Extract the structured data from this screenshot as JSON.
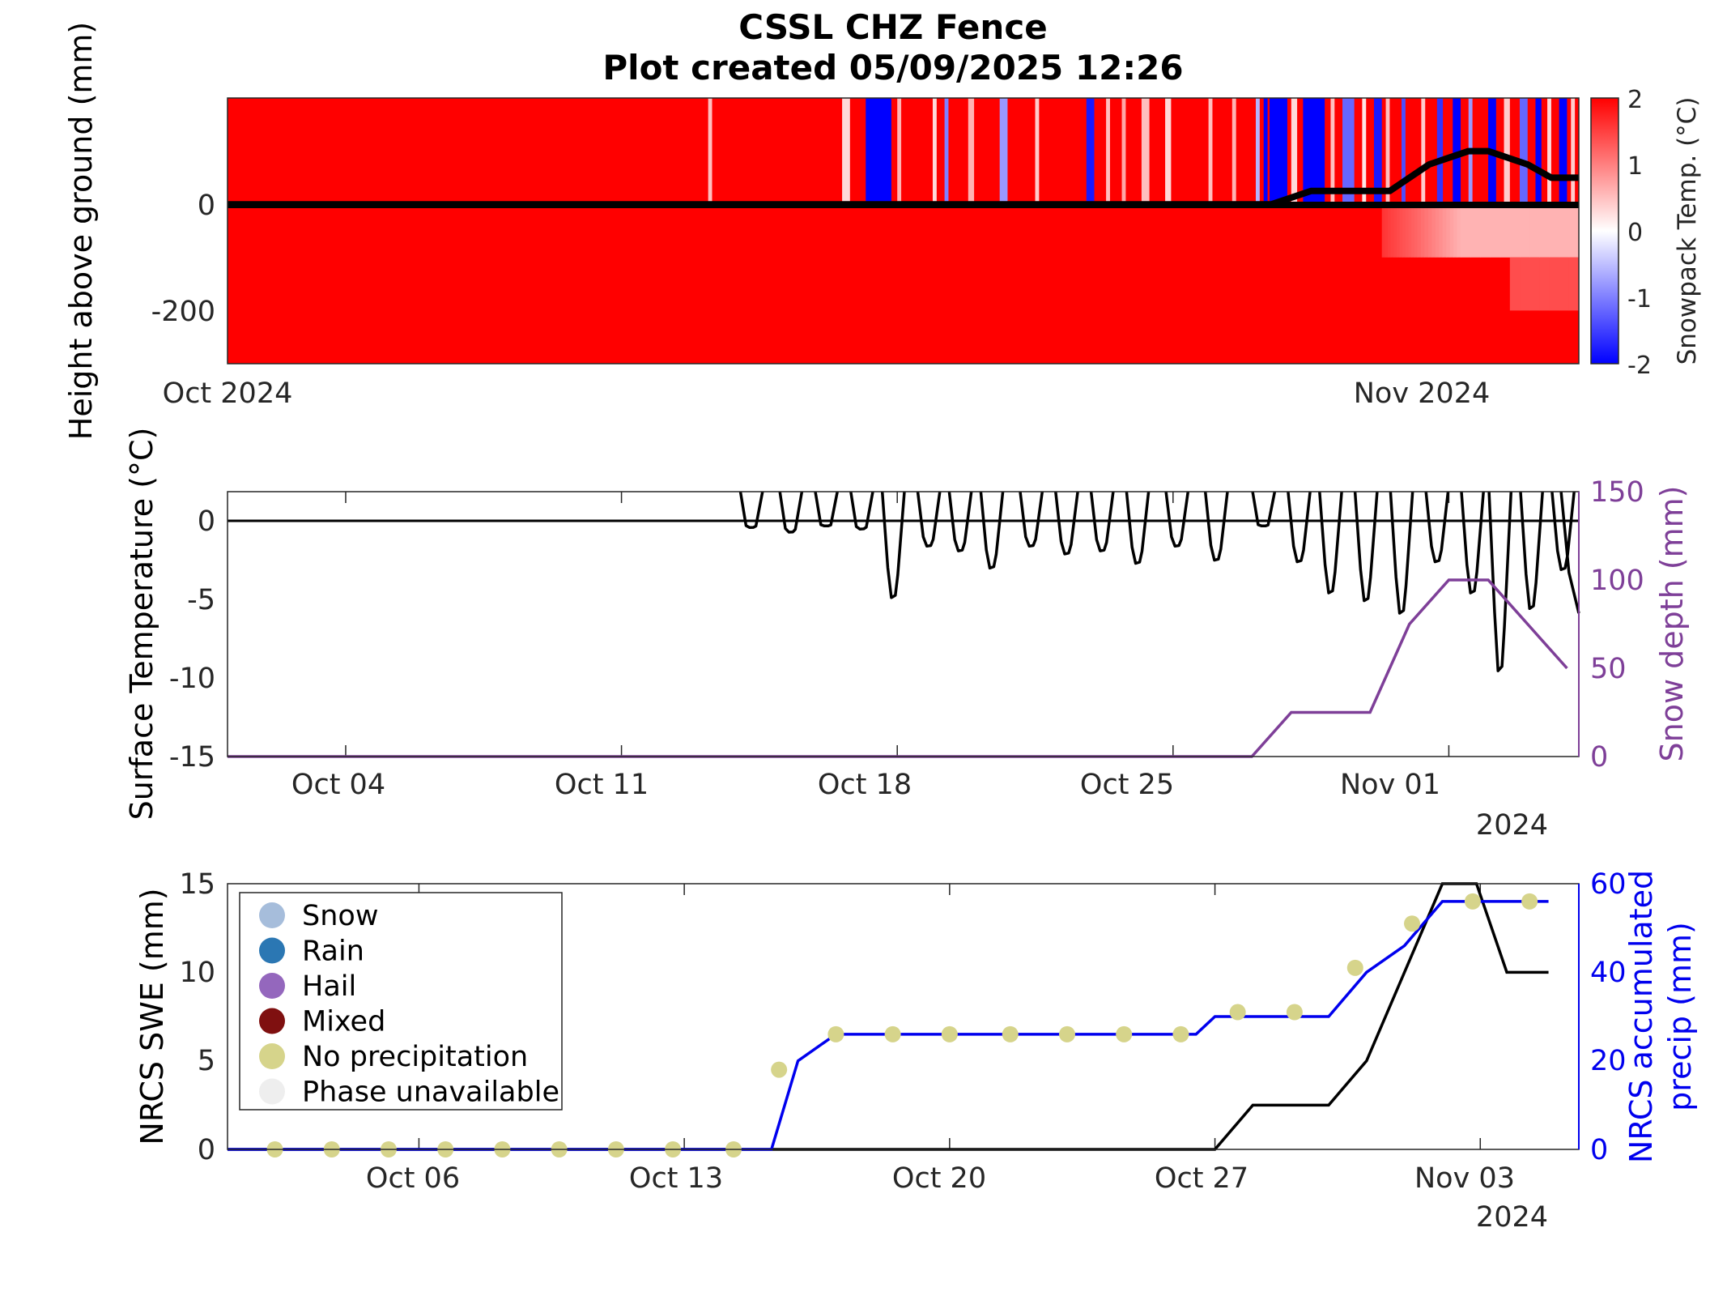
{
  "title": {
    "line1": "CSSL CHZ Fence",
    "line2": "Plot created 05/09/2025 12:26"
  },
  "chart_data": [
    {
      "id": "snowpack",
      "type": "heatmap",
      "ylabel": "Height above ground (mm)",
      "colorbar_label": "Snowpack Temp. (°C)",
      "colorbar_range": [
        -2,
        2
      ],
      "colorbar_ticks": [
        "2",
        "1",
        "0",
        "-1",
        "-2"
      ],
      "colormap": {
        "low": "#0000ff",
        "mid": "#ffffff",
        "high": "#ff0000"
      },
      "xlim_days": [
        1,
        35.3
      ],
      "ylim": [
        -300,
        200
      ],
      "xticks": [
        {
          "day": 1,
          "label": "Oct 2024"
        },
        {
          "day": 32,
          "label": "Nov 2024"
        }
      ],
      "yticks": [
        "0",
        "-200"
      ],
      "stripes": [
        [
          13.2,
          13.3,
          0.5
        ],
        [
          16.6,
          16.8,
          0.3
        ],
        [
          17.2,
          17.85,
          -2
        ],
        [
          18.0,
          18.1,
          0.6
        ],
        [
          18.9,
          19.0,
          0.3
        ],
        [
          19.2,
          19.3,
          -1
        ],
        [
          19.8,
          19.95,
          0.6
        ],
        [
          20.6,
          20.8,
          -0.8
        ],
        [
          21.5,
          21.6,
          0.4
        ],
        [
          22.8,
          23.0,
          -1.8
        ],
        [
          23.3,
          23.4,
          0.5
        ],
        [
          23.7,
          23.8,
          0.7
        ],
        [
          24.2,
          24.4,
          0.5
        ],
        [
          24.8,
          24.95,
          0.3
        ],
        [
          25.9,
          26.0,
          0.5
        ],
        [
          26.5,
          26.6,
          0.6
        ],
        [
          27.1,
          27.2,
          -0.6
        ],
        [
          27.3,
          27.4,
          -2
        ],
        [
          27.45,
          27.9,
          -2
        ],
        [
          28.0,
          28.15,
          0.3
        ],
        [
          28.3,
          28.85,
          -2
        ],
        [
          29.0,
          29.1,
          0.5
        ],
        [
          29.3,
          29.6,
          -1.2
        ],
        [
          29.8,
          29.9,
          0.2
        ],
        [
          30.1,
          30.3,
          -1.8
        ],
        [
          30.4,
          30.5,
          0.5
        ],
        [
          30.8,
          30.9,
          -1.4
        ],
        [
          31.3,
          31.4,
          0.4
        ],
        [
          31.7,
          31.85,
          -1.6
        ],
        [
          32.1,
          32.3,
          -2
        ],
        [
          32.5,
          32.6,
          -0.8
        ],
        [
          33.0,
          33.2,
          -2
        ],
        [
          33.4,
          33.55,
          0.4
        ],
        [
          33.8,
          34.0,
          -1.2
        ],
        [
          34.2,
          34.35,
          -2
        ],
        [
          34.5,
          34.6,
          0.3
        ],
        [
          34.8,
          35.0,
          -2
        ],
        [
          35.1,
          35.2,
          0.4
        ]
      ],
      "subsurface_warm_fade": [
        [
          30.3,
          1.6
        ],
        [
          31.2,
          1.2
        ],
        [
          32.3,
          0.6
        ],
        [
          35.3,
          0.6
        ]
      ],
      "snow_depth_line": {
        "x": [
          1,
          27.5,
          28.5,
          30.5,
          31.5,
          32.5,
          33.0,
          34.0,
          34.6,
          35.3
        ],
        "y": [
          0,
          0,
          25,
          25,
          75,
          100,
          100,
          75,
          50,
          50
        ]
      }
    },
    {
      "id": "surface",
      "type": "line",
      "ylabel": "Surface Temperature (°C)",
      "y2label": "Snow depth (mm)",
      "ylim": [
        -15,
        2
      ],
      "y2lim": [
        0,
        150
      ],
      "xlim_days": [
        1,
        35.3
      ],
      "xticks": [
        {
          "day": 4,
          "label": "Oct 04"
        },
        {
          "day": 11,
          "label": "Oct 11"
        },
        {
          "day": 18,
          "label": "Oct 18"
        },
        {
          "day": 25,
          "label": "Oct 25"
        },
        {
          "day": 32,
          "label": "Nov 01"
        }
      ],
      "year_label": "2024",
      "yticks": [
        0,
        -5,
        -10,
        -15
      ],
      "y2ticks": [
        150,
        100,
        50,
        0
      ],
      "zero_line": 0,
      "min_dips": [
        [
          14.3,
          -0.3
        ],
        [
          15.3,
          -0.6
        ],
        [
          16.2,
          -0.2
        ],
        [
          17.1,
          -0.4
        ],
        [
          17.9,
          -4.8
        ],
        [
          18.8,
          -1.5
        ],
        [
          19.6,
          -1.8
        ],
        [
          20.4,
          -2.9
        ],
        [
          21.4,
          -1.5
        ],
        [
          22.3,
          -2.0
        ],
        [
          23.2,
          -1.8
        ],
        [
          24.1,
          -2.6
        ],
        [
          25.1,
          -1.5
        ],
        [
          26.1,
          -2.4
        ],
        [
          27.3,
          -0.2
        ],
        [
          28.2,
          -2.5
        ],
        [
          29.0,
          -4.5
        ],
        [
          29.9,
          -5.0
        ],
        [
          30.8,
          -5.8
        ],
        [
          31.7,
          -2.5
        ],
        [
          32.6,
          -4.5
        ],
        [
          33.3,
          -9.5
        ],
        [
          34.1,
          -5.5
        ],
        [
          34.9,
          -3.0
        ]
      ],
      "snow_depth": {
        "x": [
          1,
          27.0,
          28.0,
          30.0,
          31.0,
          32.0,
          33.0,
          34.0,
          35.0
        ],
        "y": [
          0,
          0,
          25,
          25,
          75,
          100,
          100,
          75,
          50
        ]
      }
    },
    {
      "id": "nrcs",
      "type": "line",
      "ylabel": "NRCS SWE (mm)",
      "y2label_line1": "NRCS accumulated",
      "y2label_line2": "precip (mm)",
      "ylim": [
        0,
        15
      ],
      "y2lim": [
        0,
        60
      ],
      "xlim_days": [
        0.95,
        36.6
      ],
      "xticks": [
        {
          "day": 6,
          "label": "Oct 06"
        },
        {
          "day": 13,
          "label": "Oct 13"
        },
        {
          "day": 20,
          "label": "Oct 20"
        },
        {
          "day": 27,
          "label": "Oct 27"
        },
        {
          "day": 34,
          "label": "Nov 03"
        }
      ],
      "year_label": "2024",
      "yticks": [
        15,
        10,
        5,
        0
      ],
      "y2ticks": [
        60,
        40,
        20,
        0
      ],
      "swe": {
        "x": [
          0.95,
          27.0,
          28.0,
          30.0,
          31.0,
          33.0,
          33.9,
          34.7,
          35.8
        ],
        "y": [
          0,
          0,
          2.5,
          2.5,
          5.0,
          15.0,
          15.0,
          10.0,
          10.0
        ]
      },
      "precip": {
        "x": [
          0.95,
          15.3,
          16.0,
          17.0,
          26.5,
          27.0,
          30.0,
          31.0,
          32.0,
          33.0,
          35.8
        ],
        "y": [
          0,
          0,
          20,
          26,
          26,
          30,
          30,
          40,
          46,
          56,
          56
        ]
      },
      "daily_points": {
        "x": [
          2.2,
          3.7,
          5.2,
          6.7,
          8.2,
          9.7,
          11.2,
          12.7,
          14.3,
          15.5,
          17.0,
          18.5,
          20.0,
          21.6,
          23.1,
          24.6,
          26.1,
          27.6,
          29.1,
          30.7,
          32.2,
          33.8,
          35.3
        ],
        "y": [
          0,
          0,
          0,
          0,
          0,
          0,
          0,
          0,
          0,
          18,
          26,
          26,
          26,
          26,
          26,
          26,
          26,
          31,
          31,
          41,
          51,
          56,
          56
        ],
        "phase": "No precipitation"
      },
      "legend": {
        "position": "top-left",
        "items": [
          {
            "label": "Snow",
            "color": "#a6bddb"
          },
          {
            "label": "Rain",
            "color": "#2b77b3"
          },
          {
            "label": "Hail",
            "color": "#9467bd"
          },
          {
            "label": "Mixed",
            "color": "#7f1010"
          },
          {
            "label": "No precipitation",
            "color": "#d6d48b"
          },
          {
            "label": "Phase unavailable",
            "color": "#eeeeee"
          }
        ]
      },
      "colors": {
        "swe": "#000000",
        "precip": "#0000ee",
        "axis2": "#0000ee"
      }
    }
  ],
  "colors": {
    "depth_axis": "#7e3f98",
    "line": "#000000"
  }
}
